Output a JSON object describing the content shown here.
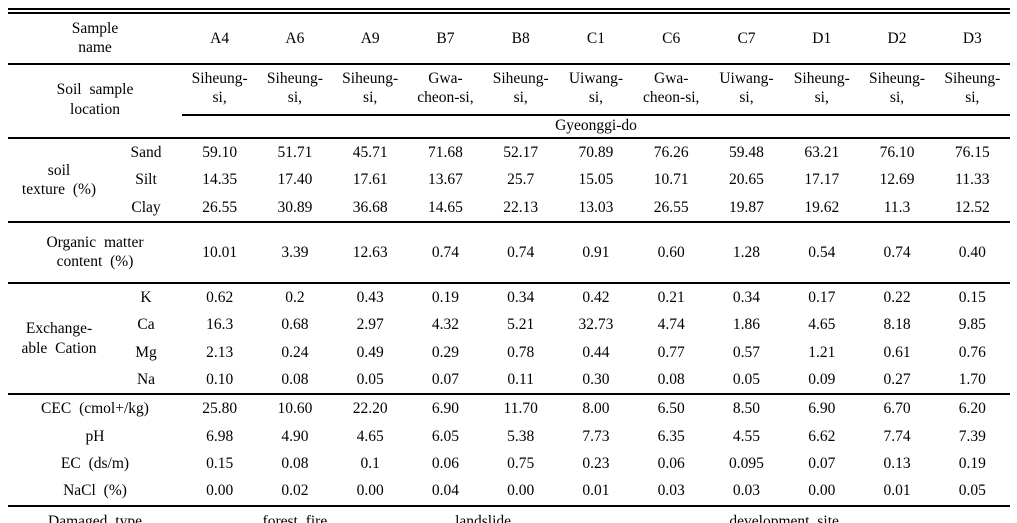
{
  "labels": {
    "sample_name": "Sample\nname",
    "soil_sample_location": "Soil sample\nlocation",
    "province": "Gyeonggi-do",
    "soil_texture": "soil\ntexture (%)",
    "sand": "Sand",
    "silt": "Silt",
    "clay": "Clay",
    "organic_matter": "Organic matter\ncontent (%)",
    "exchangeable_cation": "Exchange-\nable Cation",
    "k": "K",
    "ca": "Ca",
    "mg": "Mg",
    "na": "Na",
    "cec": "CEC (cmol+/kg)",
    "ph": "pH",
    "ec": "EC (ds/m)",
    "nacl": "NaCl (%)",
    "damaged_type": "Damaged type",
    "forest_fire": "forest fire",
    "landslide": "landslide",
    "development_site": "development site"
  },
  "columns": [
    "A4",
    "A6",
    "A9",
    "B7",
    "B8",
    "C1",
    "C6",
    "C7",
    "D1",
    "D2",
    "D3"
  ],
  "locations": [
    "Siheung-\nsi,",
    "Siheung-\nsi,",
    "Siheung-\nsi,",
    "Gwa-\ncheon-si,",
    "Siheung-\nsi,",
    "Uiwang-\nsi,",
    "Gwa-\ncheon-si,",
    "Uiwang-\nsi,",
    "Siheung-\nsi,",
    "Siheung-\nsi,",
    "Siheung-\nsi,"
  ],
  "rows": {
    "sand": [
      "59.10",
      "51.71",
      "45.71",
      "71.68",
      "52.17",
      "70.89",
      "76.26",
      "59.48",
      "63.21",
      "76.10",
      "76.15"
    ],
    "silt": [
      "14.35",
      "17.40",
      "17.61",
      "13.67",
      "25.7",
      "15.05",
      "10.71",
      "20.65",
      "17.17",
      "12.69",
      "11.33"
    ],
    "clay": [
      "26.55",
      "30.89",
      "36.68",
      "14.65",
      "22.13",
      "13.03",
      "26.55",
      "19.87",
      "19.62",
      "11.3",
      "12.52"
    ],
    "organic_matter": [
      "10.01",
      "3.39",
      "12.63",
      "0.74",
      "0.74",
      "0.91",
      "0.60",
      "1.28",
      "0.54",
      "0.74",
      "0.40"
    ],
    "k": [
      "0.62",
      "0.2",
      "0.43",
      "0.19",
      "0.34",
      "0.42",
      "0.21",
      "0.34",
      "0.17",
      "0.22",
      "0.15"
    ],
    "ca": [
      "16.3",
      "0.68",
      "2.97",
      "4.32",
      "5.21",
      "32.73",
      "4.74",
      "1.86",
      "4.65",
      "8.18",
      "9.85"
    ],
    "mg": [
      "2.13",
      "0.24",
      "0.49",
      "0.29",
      "0.78",
      "0.44",
      "0.77",
      "0.57",
      "1.21",
      "0.61",
      "0.76"
    ],
    "na": [
      "0.10",
      "0.08",
      "0.05",
      "0.07",
      "0.11",
      "0.30",
      "0.08",
      "0.05",
      "0.09",
      "0.27",
      "1.70"
    ],
    "cec": [
      "25.80",
      "10.60",
      "22.20",
      "6.90",
      "11.70",
      "8.00",
      "6.50",
      "8.50",
      "6.90",
      "6.70",
      "6.20"
    ],
    "ph": [
      "6.98",
      "4.90",
      "4.65",
      "6.05",
      "5.38",
      "7.73",
      "6.35",
      "4.55",
      "6.62",
      "7.74",
      "7.39"
    ],
    "ec": [
      "0.15",
      "0.08",
      "0.1",
      "0.06",
      "0.75",
      "0.23",
      "0.06",
      "0.095",
      "0.07",
      "0.13",
      "0.19"
    ],
    "nacl": [
      "0.00",
      "0.02",
      "0.00",
      "0.04",
      "0.00",
      "0.01",
      "0.03",
      "0.03",
      "0.00",
      "0.01",
      "0.05"
    ]
  },
  "damaged_spans": {
    "forest_fire_cols": 3,
    "landslide_cols": 2,
    "development_site_cols": 6
  }
}
